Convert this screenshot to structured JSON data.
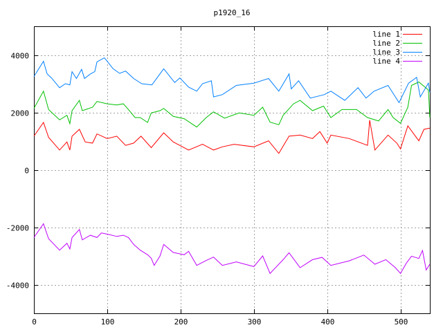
{
  "chart_data": {
    "type": "line",
    "title": "p1920_16",
    "xlabel": "",
    "ylabel": "",
    "xlim": [
      0,
      540
    ],
    "ylim": [
      -5000,
      5000
    ],
    "xticks": [
      0,
      100,
      200,
      300,
      400,
      500
    ],
    "yticks": [
      -4000,
      -2000,
      0,
      2000,
      4000
    ],
    "grid": true,
    "legend_position": "top-right",
    "series": [
      {
        "name": "line 1",
        "color": "#ff0000",
        "x": [
          0,
          13,
          20,
          35,
          45,
          49,
          52,
          62,
          70,
          80,
          86,
          100,
          113,
          125,
          136,
          146,
          160,
          177,
          190,
          211,
          230,
          245,
          257,
          273,
          300,
          320,
          334,
          348,
          363,
          380,
          390,
          400,
          405,
          430,
          455,
          458,
          465,
          483,
          495,
          500,
          510,
          525,
          532,
          540
        ],
        "y": [
          1170,
          1650,
          1130,
          690,
          970,
          690,
          1170,
          1410,
          970,
          930,
          1250,
          1090,
          1170,
          850,
          930,
          1170,
          770,
          1290,
          970,
          690,
          890,
          690,
          800,
          890,
          800,
          1010,
          570,
          1170,
          1210,
          1090,
          1330,
          930,
          1210,
          1090,
          850,
          1730,
          690,
          1210,
          930,
          730,
          1530,
          1010,
          1410,
          1450
        ]
      },
      {
        "name": "line 2",
        "color": "#00c000",
        "x": [
          0,
          13,
          20,
          35,
          45,
          49,
          52,
          62,
          66,
          80,
          86,
          100,
          113,
          122,
          129,
          138,
          145,
          155,
          160,
          172,
          177,
          190,
          205,
          222,
          235,
          245,
          260,
          280,
          300,
          312,
          322,
          334,
          340,
          354,
          363,
          380,
          395,
          405,
          420,
          440,
          455,
          470,
          483,
          490,
          500,
          510,
          515,
          525,
          538,
          540
        ],
        "y": [
          2140,
          2740,
          2100,
          1740,
          1900,
          1610,
          2060,
          2420,
          2060,
          2180,
          2380,
          2300,
          2260,
          2300,
          2100,
          1820,
          1820,
          1650,
          1980,
          2060,
          2140,
          1860,
          1780,
          1490,
          1820,
          2020,
          1800,
          1980,
          1900,
          2180,
          1660,
          1570,
          1900,
          2300,
          2420,
          2060,
          2220,
          1820,
          2100,
          2100,
          1820,
          1700,
          2100,
          1820,
          1620,
          2180,
          2940,
          3060,
          2780,
          1820
        ]
      },
      {
        "name": "line 3",
        "color": "#0080ff",
        "x": [
          0,
          13,
          18,
          24,
          35,
          43,
          49,
          52,
          58,
          65,
          69,
          77,
          83,
          86,
          96,
          100,
          108,
          117,
          125,
          136,
          147,
          161,
          177,
          192,
          199,
          211,
          222,
          230,
          242,
          245,
          257,
          276,
          300,
          320,
          334,
          348,
          351,
          361,
          377,
          396,
          405,
          424,
          442,
          453,
          464,
          483,
          498,
          511,
          522,
          527,
          538,
          540
        ],
        "y": [
          3250,
          3780,
          3340,
          3200,
          2860,
          3000,
          2960,
          3420,
          3180,
          3500,
          3180,
          3340,
          3420,
          3760,
          3900,
          3780,
          3520,
          3360,
          3440,
          3180,
          3000,
          2960,
          3520,
          3040,
          3200,
          2880,
          2740,
          3000,
          3100,
          2540,
          2620,
          2940,
          3020,
          3180,
          2740,
          3340,
          2820,
          3100,
          2500,
          2620,
          2740,
          2420,
          2860,
          2500,
          2740,
          2940,
          2340,
          3020,
          3220,
          2540,
          3020,
          2700
        ]
      },
      {
        "name": "line 4",
        "color": "#c000ff",
        "x": [
          0,
          13,
          20,
          35,
          45,
          49,
          52,
          62,
          66,
          77,
          86,
          92,
          100,
          113,
          122,
          129,
          136,
          145,
          155,
          160,
          164,
          172,
          177,
          190,
          205,
          211,
          222,
          235,
          245,
          257,
          276,
          300,
          312,
          322,
          340,
          348,
          363,
          380,
          393,
          405,
          430,
          450,
          465,
          480,
          493,
          500,
          508,
          515,
          525,
          530,
          535,
          540
        ],
        "y": [
          -2360,
          -1880,
          -2400,
          -2800,
          -2560,
          -2760,
          -2360,
          -2080,
          -2440,
          -2280,
          -2360,
          -2200,
          -2240,
          -2320,
          -2280,
          -2360,
          -2600,
          -2800,
          -2960,
          -3080,
          -3330,
          -3000,
          -2600,
          -2880,
          -2960,
          -2840,
          -3330,
          -3160,
          -3040,
          -3330,
          -3210,
          -3370,
          -3000,
          -3610,
          -3130,
          -2890,
          -3410,
          -3130,
          -3050,
          -3330,
          -3170,
          -2970,
          -3290,
          -3130,
          -3410,
          -3610,
          -3250,
          -3010,
          -3090,
          -2810,
          -3490,
          -3290
        ]
      }
    ]
  }
}
